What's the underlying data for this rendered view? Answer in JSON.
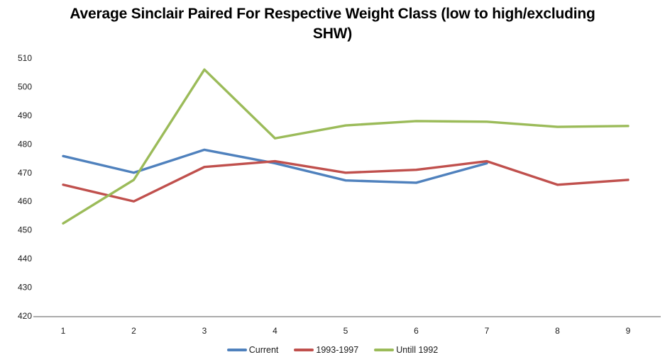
{
  "chart_data": {
    "type": "line",
    "title": "Average Sinclair Paired For Respective Weight Class (low to high/excluding\nSHW)",
    "categories": [
      "1",
      "2",
      "3",
      "4",
      "5",
      "6",
      "7",
      "8",
      "9"
    ],
    "series": [
      {
        "name": "Current",
        "color": "#4F81BD",
        "values": [
          475.8,
          470,
          478,
          473.3,
          467.3,
          466.5,
          473.3,
          null,
          null
        ]
      },
      {
        "name": "1993-1997",
        "color": "#C0504D",
        "values": [
          465.8,
          460,
          472,
          474,
          470,
          471,
          474,
          465.8,
          467.5
        ]
      },
      {
        "name": "Untill 1992",
        "color": "#9BBB59",
        "values": [
          452.3,
          467.5,
          506,
          482,
          486.5,
          488,
          487.8,
          486,
          486.3
        ]
      }
    ],
    "ylim": [
      420,
      510
    ],
    "yticks": [
      420,
      430,
      440,
      450,
      460,
      470,
      480,
      490,
      500,
      510
    ],
    "grid": false,
    "legend_position": "bottom",
    "axis_color": "#8f8f8f",
    "tick_label_color": "#1a1a1a",
    "background_color": "#ffffff"
  }
}
